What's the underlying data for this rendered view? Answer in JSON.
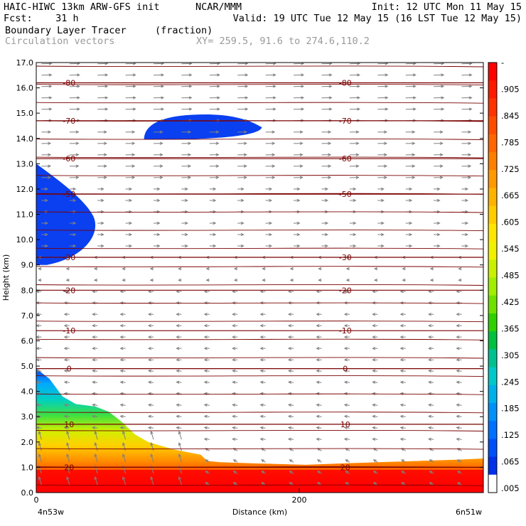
{
  "header": {
    "left_line1": "HAIC-HIWC 13km ARW-GFS init",
    "center_line1": "NCAR/MMM",
    "right_line1": "Init: 12 UTC Mon 11 May 15",
    "left_line2": "Fcst:    31 h",
    "right_line2": "Valid: 19 UTC Tue 12 May 15 (16 LST Tue 12 May 15)",
    "field_name": "Boundary Layer Tracer",
    "field_units": "(fraction)",
    "overlay_name": "Circulation vectors",
    "xy_text": "XY= 259.5, 91.6 to 274.6,110.2"
  },
  "chart_data": {
    "type": "heatmap",
    "title": "Boundary Layer Tracer",
    "units": "(fraction)",
    "xlabel": "Distance (km)",
    "ylabel": "Height (km)",
    "xlim": [
      0,
      340
    ],
    "ylim": [
      0.0,
      17.0
    ],
    "y_ticks": [
      "0.0",
      "1.0",
      "2.0",
      "3.0",
      "4.0",
      "5.0",
      "6.0",
      "7.0",
      "8.0",
      "9.0",
      "10.0",
      "11.0",
      "12.0",
      "13.0",
      "14.0",
      "15.0",
      "16.0",
      "17.0"
    ],
    "x_ticks": [
      {
        "value": 0,
        "label": "0"
      },
      {
        "value": 200,
        "label": "200"
      }
    ],
    "x_endpoint_labels": {
      "left": "4n53w",
      "right": "6n51w"
    },
    "colorbar": {
      "labels": [
        "-",
        ".905",
        ".845",
        ".785",
        ".725",
        ".665",
        ".605",
        ".545",
        ".485",
        ".425",
        ".365",
        ".305",
        ".245",
        ".185",
        ".125",
        ".065",
        ".005"
      ],
      "colors": [
        "#ff0000",
        "#ff1a00",
        "#ff3300",
        "#ff4d00",
        "#ff6600",
        "#ff8000",
        "#ff9900",
        "#ffb300",
        "#ffcc00",
        "#ffe600",
        "#f0f000",
        "#c8f000",
        "#a0ee00",
        "#70e000",
        "#30d000",
        "#00c040",
        "#00c090",
        "#00c8c8",
        "#00b0e8",
        "#0090f8",
        "#0070ff",
        "#0050f8",
        "#0030e8",
        "#ffffff"
      ]
    },
    "temperature_contours": [
      {
        "label": "-80",
        "height": 16.2
      },
      {
        "label": "-70",
        "height": 14.7
      },
      {
        "label": "-60",
        "height": 13.2
      },
      {
        "label": "-50",
        "height": 11.8
      },
      {
        "label": "-30",
        "height": 9.3
      },
      {
        "label": "-20",
        "height": 8.0
      },
      {
        "label": "-10",
        "height": 6.4
      },
      {
        "label": "0",
        "height": 4.9
      },
      {
        "label": "10",
        "height": 2.7
      },
      {
        "label": "20",
        "height": 1.0
      }
    ],
    "tracer_surface_profile": [
      {
        "x": 0,
        "y": 4.9
      },
      {
        "x": 10,
        "y": 4.5
      },
      {
        "x": 20,
        "y": 3.8
      },
      {
        "x": 30,
        "y": 3.5
      },
      {
        "x": 45,
        "y": 3.4
      },
      {
        "x": 55,
        "y": 3.2
      },
      {
        "x": 65,
        "y": 2.8
      },
      {
        "x": 75,
        "y": 2.3
      },
      {
        "x": 85,
        "y": 2.0
      },
      {
        "x": 95,
        "y": 1.85
      },
      {
        "x": 105,
        "y": 1.7
      },
      {
        "x": 115,
        "y": 1.6
      },
      {
        "x": 125,
        "y": 1.5
      },
      {
        "x": 130,
        "y": 1.25
      },
      {
        "x": 140,
        "y": 1.2
      },
      {
        "x": 170,
        "y": 1.15
      },
      {
        "x": 205,
        "y": 1.1
      },
      {
        "x": 230,
        "y": 1.15
      },
      {
        "x": 260,
        "y": 1.2
      },
      {
        "x": 290,
        "y": 1.25
      },
      {
        "x": 320,
        "y": 1.3
      },
      {
        "x": 340,
        "y": 1.35
      }
    ],
    "upper_tracer_patches": [
      {
        "name": "left-cloud",
        "x_range": [
          0,
          48
        ],
        "y_range": [
          9.0,
          13.0
        ],
        "value": 0.04
      },
      {
        "name": "upper-cloud",
        "x_range": [
          82,
          170
        ],
        "y_range": [
          13.95,
          14.95
        ],
        "value": 0.02
      }
    ],
    "wind_vectors": [
      {
        "y_range": [
          14.5,
          17.0
        ],
        "u": 1.0,
        "w": 0.03
      },
      {
        "y_range": [
          12.0,
          14.5
        ],
        "u": 0.9,
        "w": 0.02
      },
      {
        "y_range": [
          9.5,
          12.0
        ],
        "u": 0.6,
        "w": 0.0
      },
      {
        "y_range": [
          8.0,
          9.5
        ],
        "u": -0.3,
        "w": 0.0
      },
      {
        "y_range": [
          5.0,
          8.0
        ],
        "u": -0.5,
        "w": 0.0
      },
      {
        "y_range": [
          2.0,
          5.0
        ],
        "u": -0.5,
        "w": 0.05
      },
      {
        "y_range": [
          0.0,
          2.0
        ],
        "u": -0.4,
        "w": 0.25
      }
    ]
  }
}
